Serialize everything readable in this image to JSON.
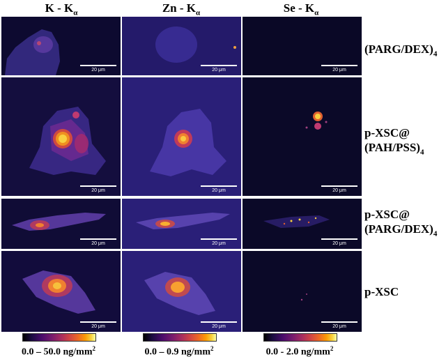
{
  "columns": [
    {
      "element": "K",
      "line": "α",
      "sep": " - K"
    },
    {
      "element": "Zn",
      "line": "α",
      "sep": " - K"
    },
    {
      "element": "Se",
      "line": "α",
      "sep": " - K"
    }
  ],
  "rows": [
    {
      "label_line1": "(PARG/DEX)",
      "label_sub": "4",
      "label_line2": ""
    },
    {
      "label_line1": "p-XSC@",
      "label_sub": "",
      "label_line2": "(PAH/PSS)",
      "label_line2_sub": "4"
    },
    {
      "label_line1": "p-XSC@",
      "label_sub": "",
      "label_line2": "(PARG/DEX)",
      "label_line2_sub": "4"
    },
    {
      "label_line1": "p-XSC",
      "label_sub": "",
      "label_line2": ""
    }
  ],
  "scale_bar_label": "20 μm",
  "colorbars": [
    {
      "range": "0.0 – 50.0 ng/mm",
      "exp": "2"
    },
    {
      "range": "0.0 – 0.9 ng/mm",
      "exp": "2"
    },
    {
      "range": "0.0 - 2.0 ng/mm",
      "exp": "2"
    }
  ],
  "colormap": [
    "#000000",
    "#4a0c6b",
    "#a52c60",
    "#ed6925",
    "#f7d13d",
    "#fcffa4"
  ]
}
